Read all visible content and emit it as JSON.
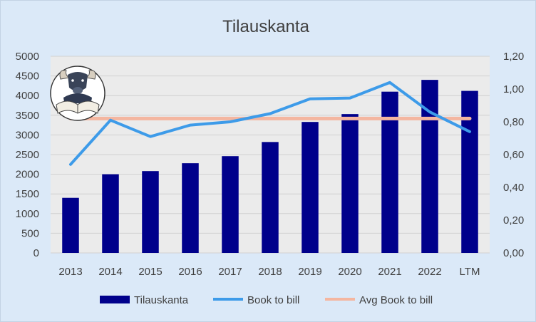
{
  "chart_data": {
    "type": "bar",
    "title": "Tilauskanta",
    "categories": [
      "2013",
      "2014",
      "2015",
      "2016",
      "2017",
      "2018",
      "2019",
      "2020",
      "2021",
      "2022",
      "LTM"
    ],
    "series": [
      {
        "name": "Tilauskanta",
        "type": "bar",
        "axis": "left",
        "color": "#00008b",
        "values": [
          1400,
          2000,
          2080,
          2280,
          2460,
          2820,
          3330,
          3530,
          4100,
          4400,
          4120
        ]
      },
      {
        "name": "Book to bill",
        "type": "line",
        "axis": "right",
        "color": "#3d9be9",
        "values": [
          0.54,
          0.81,
          0.71,
          0.78,
          0.8,
          0.85,
          0.94,
          0.945,
          1.04,
          0.86,
          0.74
        ]
      },
      {
        "name": "Avg Book to bill",
        "type": "line",
        "axis": "right",
        "color": "#f4b6a0",
        "values": [
          0.82,
          0.82,
          0.82,
          0.82,
          0.82,
          0.82,
          0.82,
          0.82,
          0.82,
          0.82,
          0.82
        ]
      }
    ],
    "y_left": {
      "min": 0,
      "max": 5000,
      "ticks": [
        "0",
        "500",
        "1000",
        "1500",
        "2000",
        "2500",
        "3000",
        "3500",
        "4000",
        "4500",
        "5000"
      ]
    },
    "y_right": {
      "min": 0,
      "max": 1.2,
      "ticks": [
        "0,00",
        "0,20",
        "0,40",
        "0,60",
        "0,80",
        "1,00",
        "1,20"
      ]
    },
    "grid": true,
    "legend_position": "bottom",
    "logo": "bull-reading-book-logo"
  }
}
